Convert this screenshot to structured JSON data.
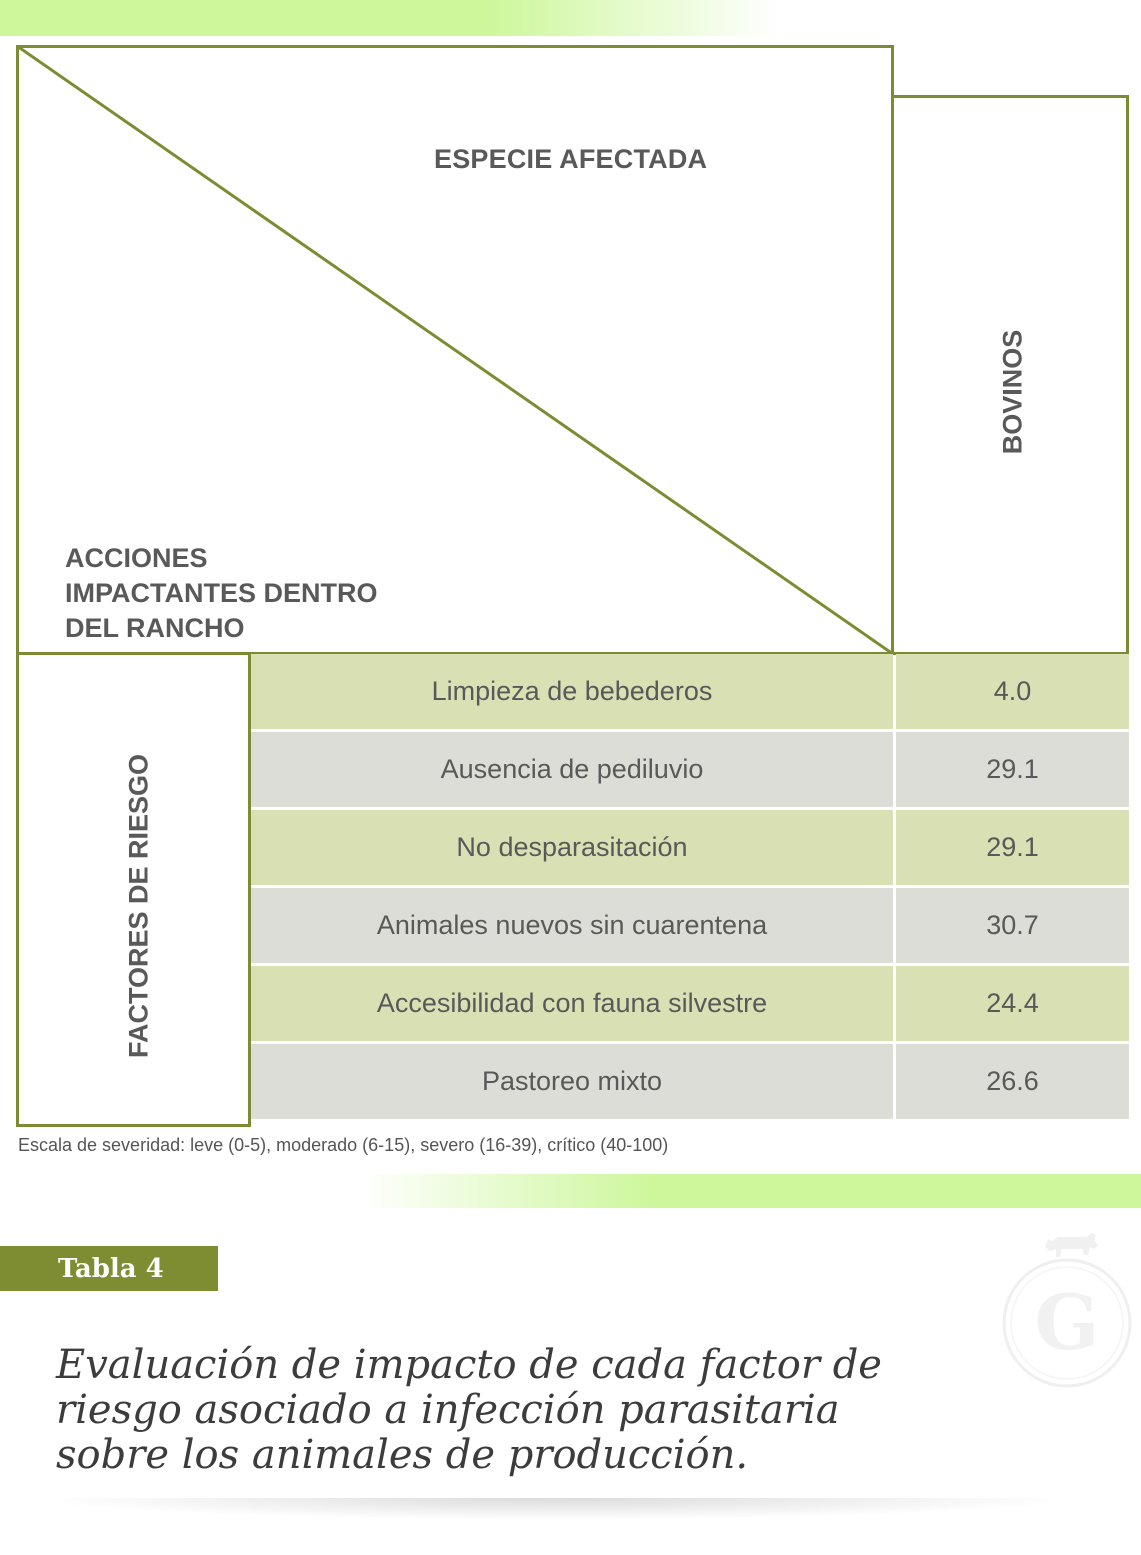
{
  "table": {
    "column_header": "ESPECIE AFECTADA",
    "row_header": "ACCIONES IMPACTANTES DENTRO DEL RANCHO",
    "species": "BOVINOS",
    "group_label": "FACTORES DE RIESGO",
    "rows": [
      {
        "factor": "Limpieza de bebederos",
        "value": "4.0"
      },
      {
        "factor": "Ausencia de pediluvio",
        "value": "29.1"
      },
      {
        "factor": "No desparasitación",
        "value": "29.1"
      },
      {
        "factor": "Animales nuevos sin cuarentena",
        "value": "30.7"
      },
      {
        "factor": "Accesibilidad con fauna silvestre",
        "value": "24.4"
      },
      {
        "factor": "Pastoreo mixto",
        "value": "26.6"
      }
    ],
    "footnote": "Escala de severidad: leve (0-5), moderado (6-15), severo (16-39), crítico (40-100)"
  },
  "caption": {
    "badge": "Tabla 4",
    "text": "Evaluación de impacto de cada factor de riesgo asociado a infección parasitaria sobre los animales de producción."
  },
  "logo": {
    "letter": "G",
    "icon": "cow-icon"
  },
  "colors": {
    "border": "#7d8c33",
    "row_green": "#d8e0b4",
    "row_gray": "#dcddd6",
    "accent_band": "#ccf79a",
    "badge": "#7e8d32"
  }
}
